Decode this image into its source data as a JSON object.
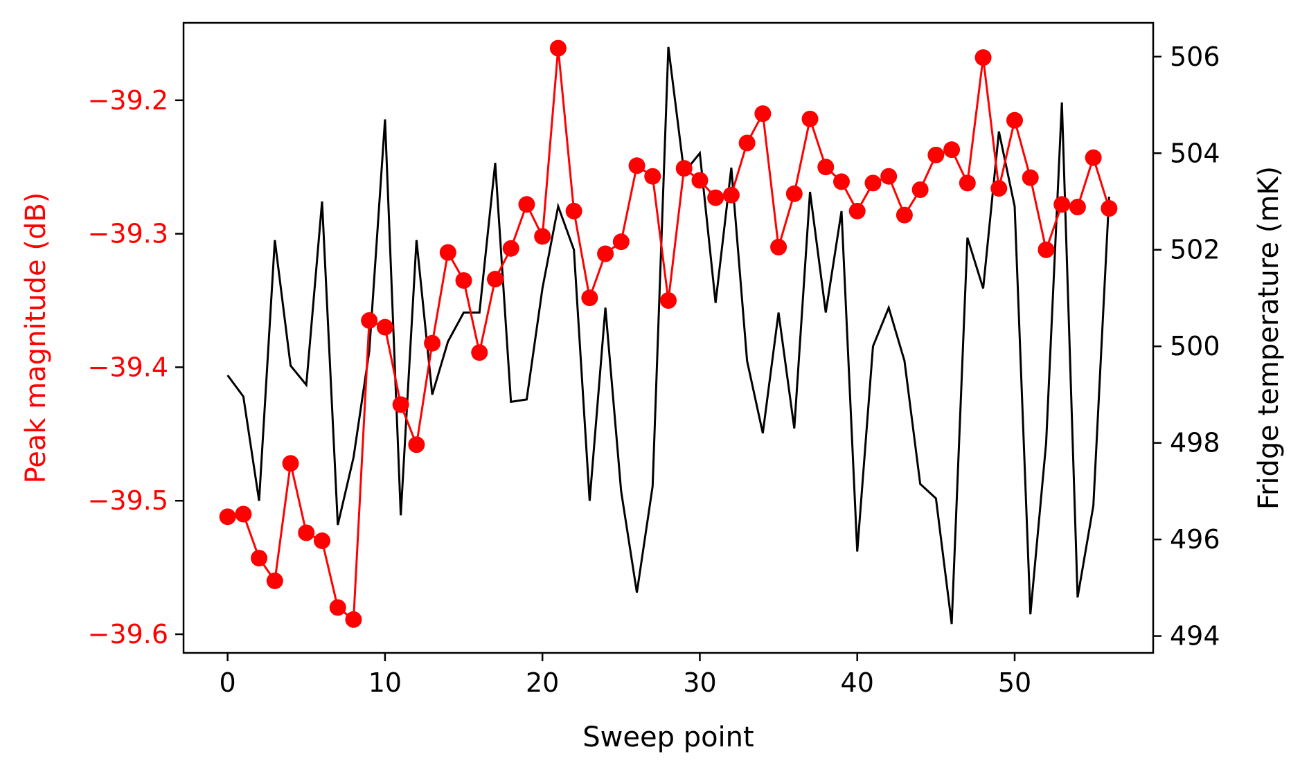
{
  "colors": {
    "left_series": "#ff0000",
    "right_series": "#000000",
    "axes": "#000000"
  },
  "chart_data": {
    "type": "line",
    "title": "",
    "xlabel": "Sweep point",
    "ylabel_left": "Peak magnitude (dB)",
    "ylabel_right": "Fridge temperature (mK)",
    "xlim": [
      -2.8,
      58.8
    ],
    "ylim_left": [
      -39.614,
      -39.142
    ],
    "ylim_right": [
      493.65,
      506.7
    ],
    "xticks": [
      0,
      10,
      20,
      30,
      40,
      50
    ],
    "xtick_labels": [
      "0",
      "10",
      "20",
      "30",
      "40",
      "50"
    ],
    "yticks_left": [
      -39.2,
      -39.3,
      -39.4,
      -39.5,
      -39.6
    ],
    "ytick_labels_left": [
      "−39.2",
      "−39.3",
      "−39.4",
      "−39.5",
      "−39.6"
    ],
    "yticks_right": [
      494,
      496,
      498,
      500,
      502,
      504,
      506
    ],
    "ytick_labels_right": [
      "494",
      "496",
      "498",
      "500",
      "502",
      "504",
      "506"
    ],
    "grid": false,
    "legend": "none",
    "x": [
      0,
      1,
      2,
      3,
      4,
      5,
      6,
      7,
      8,
      9,
      10,
      11,
      12,
      13,
      14,
      15,
      16,
      17,
      18,
      19,
      20,
      21,
      22,
      23,
      24,
      25,
      26,
      27,
      28,
      29,
      30,
      31,
      32,
      33,
      34,
      35,
      36,
      37,
      38,
      39,
      40,
      41,
      42,
      43,
      44,
      45,
      46,
      47,
      48,
      49,
      50,
      51,
      52,
      53,
      54,
      55,
      56
    ],
    "series": [
      {
        "axis": "left",
        "color": "#ff0000",
        "marker": "circle",
        "values": [
          -39.512,
          -39.51,
          -39.543,
          -39.56,
          -39.472,
          -39.524,
          -39.53,
          -39.58,
          -39.589,
          -39.365,
          -39.37,
          -39.428,
          -39.458,
          -39.382,
          -39.314,
          -39.335,
          -39.389,
          -39.334,
          -39.311,
          -39.278,
          -39.302,
          -39.161,
          -39.283,
          -39.348,
          -39.315,
          -39.306,
          -39.249,
          -39.257,
          -39.35,
          -39.251,
          -39.26,
          -39.273,
          -39.271,
          -39.232,
          -39.21,
          -39.31,
          -39.27,
          -39.214,
          -39.25,
          -39.261,
          -39.283,
          -39.262,
          -39.257,
          -39.286,
          -39.267,
          -39.241,
          -39.237,
          -39.262,
          -39.168,
          -39.266,
          -39.215,
          -39.258,
          -39.312,
          -39.278,
          -39.28,
          -39.243,
          -39.281
        ]
      },
      {
        "axis": "right",
        "color": "#000000",
        "marker": "none",
        "values": [
          499.4,
          498.96,
          496.8,
          502.2,
          499.6,
          499.2,
          503.0,
          496.3,
          497.7,
          499.9,
          504.7,
          496.5,
          502.2,
          499.0,
          500.1,
          500.7,
          500.7,
          503.8,
          498.85,
          498.9,
          501.2,
          502.9,
          502.0,
          496.8,
          500.8,
          497.0,
          494.9,
          497.1,
          506.2,
          503.6,
          504.0,
          500.9,
          503.7,
          499.7,
          498.2,
          500.7,
          498.3,
          503.2,
          500.7,
          502.8,
          495.75,
          500.0,
          500.8,
          499.7,
          497.15,
          496.85,
          494.25,
          502.25,
          501.2,
          504.45,
          502.9,
          494.45,
          498.0,
          505.05,
          494.8,
          496.7,
          503.1
        ]
      }
    ]
  }
}
